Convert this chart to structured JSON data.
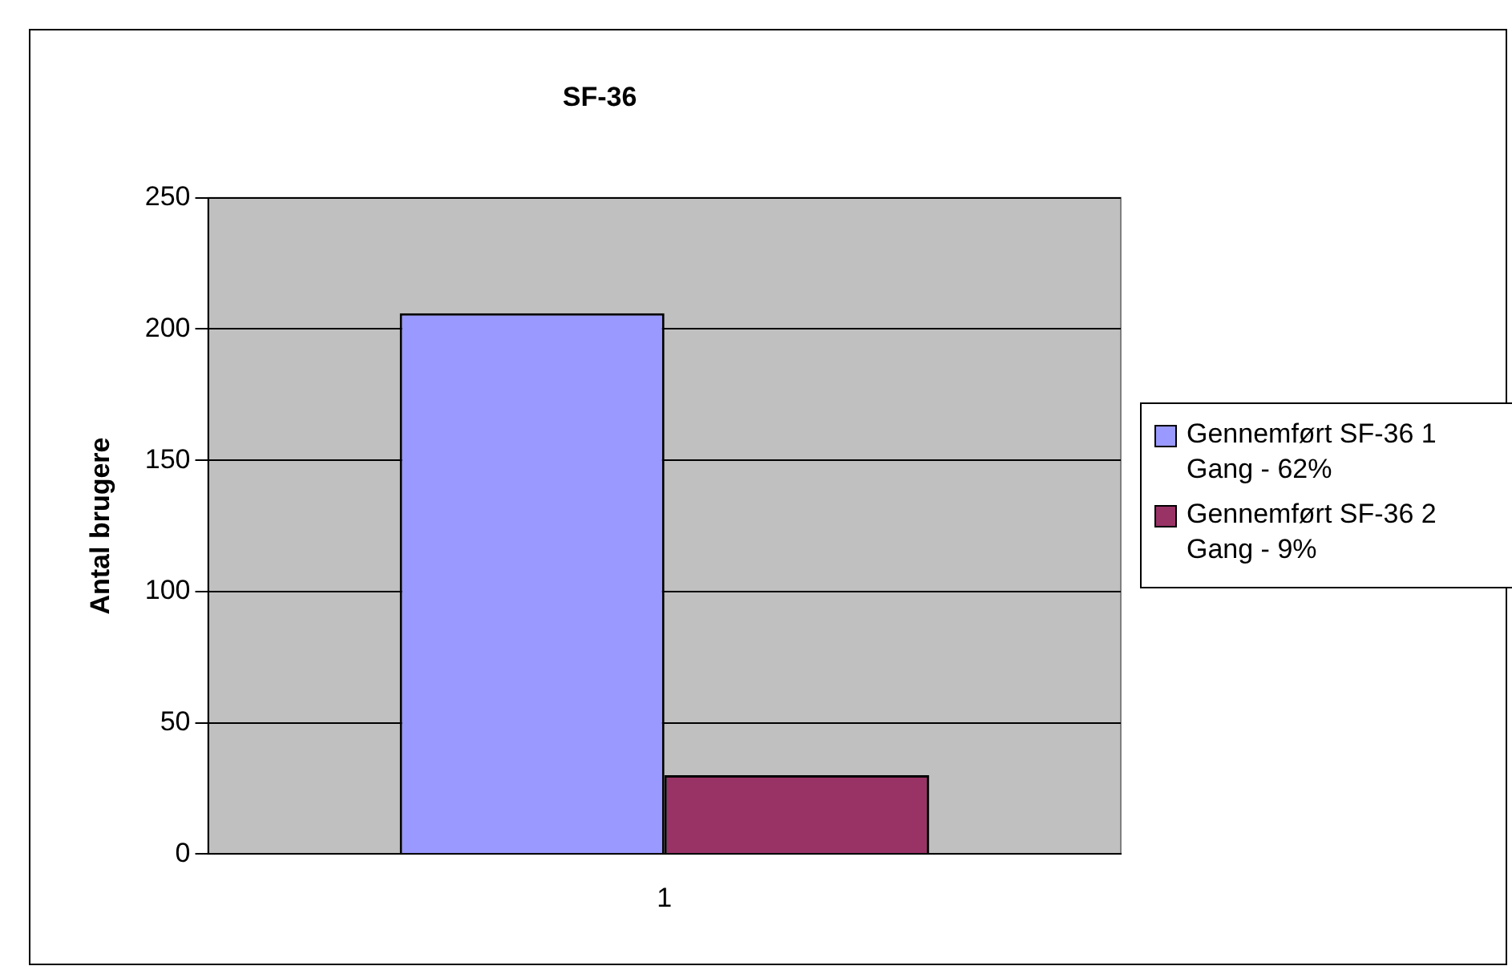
{
  "chart_data": {
    "type": "bar",
    "title": "SF-36",
    "ylabel": "Antal brugere",
    "categories": [
      "1"
    ],
    "series": [
      {
        "name": "Gennemført SF-36 1 Gang - 62%",
        "color": "#9999ff",
        "values": [
          206
        ]
      },
      {
        "name": "Gennemført SF-36 2 Gang - 9%",
        "color": "#993366",
        "values": [
          30
        ]
      }
    ],
    "ylim": [
      0,
      250
    ],
    "yticks": [
      0,
      50,
      100,
      150,
      200,
      250
    ],
    "grid": "y",
    "legend": "right"
  }
}
